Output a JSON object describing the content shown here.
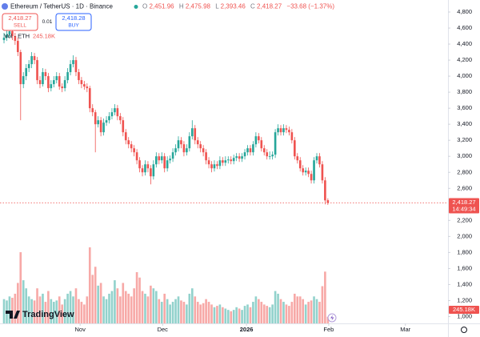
{
  "header": {
    "symbol": "Ethereum / TetherUS · 1D · Binance",
    "o_label": "O",
    "o": "2,451.96",
    "h_label": "H",
    "h": "2,475.98",
    "l_label": "L",
    "l": "2,393.46",
    "c_label": "C",
    "c": "2,418.27",
    "change": "−33.68 (−1.37%)"
  },
  "trade": {
    "sell_price": "2,418.27",
    "sell": "SELL",
    "spread": "0.01",
    "buy_price": "2,418.28",
    "buy": "BUY"
  },
  "volume_legend": {
    "label": "Vol · ETH",
    "value": "245.18K"
  },
  "price_tag": {
    "price": "2,418.27",
    "countdown": "14:49:34"
  },
  "volume_tag": "245.18K",
  "logo": "TradingView",
  "chart_data": {
    "type": "candlestick",
    "up_color": "#26a69a",
    "down_color": "#ef5350",
    "ylim": [
      915,
      4950
    ],
    "yticks": [
      {
        "value": 4800,
        "label": "4,800"
      },
      {
        "value": 4600,
        "label": "4,600"
      },
      {
        "value": 4400,
        "label": "4,400"
      },
      {
        "value": 4200,
        "label": "4,200"
      },
      {
        "value": 4000,
        "label": "4,000"
      },
      {
        "value": 3800,
        "label": "3,800"
      },
      {
        "value": 3600,
        "label": "3,600"
      },
      {
        "value": 3400,
        "label": "3,400"
      },
      {
        "value": 3200,
        "label": "3,200"
      },
      {
        "value": 3000,
        "label": "3,000"
      },
      {
        "value": 2800,
        "label": "2,800"
      },
      {
        "value": 2600,
        "label": "2,600"
      },
      {
        "value": 2200,
        "label": "2,200"
      },
      {
        "value": 2000,
        "label": "2,000"
      },
      {
        "value": 1800,
        "label": "1,800"
      },
      {
        "value": 1600,
        "label": "1,600"
      },
      {
        "value": 1400,
        "label": "1,400"
      },
      {
        "value": 1200,
        "label": "1,200"
      },
      {
        "value": 1000,
        "label": "1,000"
      }
    ],
    "xlim": [
      -1.45,
      160.4
    ],
    "xticks": [
      {
        "value": 27.5,
        "label": "Nov"
      },
      {
        "value": 57.3,
        "label": "Dec"
      },
      {
        "value": 87.6,
        "label": "2026"
      },
      {
        "value": 117.3,
        "label": "Feb"
      },
      {
        "value": 145,
        "label": "Mar"
      }
    ],
    "last_price": 2418.27,
    "candles": [
      [
        4450,
        4540,
        4410,
        4480
      ],
      [
        4480,
        4570,
        4440,
        4520
      ],
      [
        4520,
        4620,
        4480,
        4560
      ],
      [
        4560,
        4600,
        4450,
        4500
      ],
      [
        4500,
        4540,
        4390,
        4440
      ],
      [
        4440,
        4480,
        4250,
        4300
      ],
      [
        4300,
        4330,
        3450,
        3900
      ],
      [
        3900,
        4050,
        3850,
        4000
      ],
      [
        4000,
        4150,
        3950,
        4100
      ],
      [
        4100,
        4200,
        4050,
        4150
      ],
      [
        4150,
        4300,
        4100,
        4250
      ],
      [
        4250,
        4290,
        4150,
        4200
      ],
      [
        4200,
        4240,
        3900,
        3950
      ],
      [
        3950,
        4000,
        3850,
        3900
      ],
      [
        3900,
        4100,
        3870,
        4050
      ],
      [
        4050,
        4090,
        3950,
        4000
      ],
      [
        4000,
        4040,
        3800,
        3850
      ],
      [
        3850,
        3950,
        3810,
        3900
      ],
      [
        3900,
        4000,
        3860,
        3950
      ],
      [
        3950,
        4050,
        3910,
        4000
      ],
      [
        4000,
        4040,
        3830,
        3870
      ],
      [
        3870,
        3910,
        3800,
        3850
      ],
      [
        3850,
        4000,
        3810,
        3950
      ],
      [
        3950,
        4100,
        3910,
        4050
      ],
      [
        4050,
        4200,
        4010,
        4150
      ],
      [
        4150,
        4260,
        4110,
        4200
      ],
      [
        4200,
        4240,
        4000,
        4050
      ],
      [
        4050,
        4090,
        3900,
        3950
      ],
      [
        3950,
        3990,
        3850,
        3900
      ],
      [
        3900,
        3940,
        3830,
        3870
      ],
      [
        3870,
        3910,
        3800,
        3850
      ],
      [
        3850,
        3880,
        3550,
        3600
      ],
      [
        3600,
        3650,
        3500,
        3550
      ],
      [
        3550,
        3580,
        3050,
        3400
      ],
      [
        3400,
        3500,
        3360,
        3450
      ],
      [
        3450,
        3490,
        3250,
        3300
      ],
      [
        3300,
        3470,
        3260,
        3420
      ],
      [
        3420,
        3500,
        3380,
        3450
      ],
      [
        3450,
        3550,
        3410,
        3500
      ],
      [
        3500,
        3600,
        3460,
        3550
      ],
      [
        3550,
        3650,
        3510,
        3600
      ],
      [
        3600,
        3640,
        3450,
        3500
      ],
      [
        3500,
        3540,
        3400,
        3450
      ],
      [
        3450,
        3490,
        3250,
        3300
      ],
      [
        3300,
        3340,
        3150,
        3200
      ],
      [
        3200,
        3240,
        3100,
        3150
      ],
      [
        3150,
        3190,
        3050,
        3100
      ],
      [
        3100,
        3140,
        3000,
        3050
      ],
      [
        3050,
        3090,
        2900,
        2950
      ],
      [
        2950,
        2990,
        2800,
        2850
      ],
      [
        2850,
        2890,
        2750,
        2800
      ],
      [
        2800,
        2950,
        2760,
        2900
      ],
      [
        2900,
        2940,
        2800,
        2850
      ],
      [
        2850,
        2890,
        2650,
        2750
      ],
      [
        2750,
        2950,
        2710,
        2900
      ],
      [
        2900,
        3050,
        2860,
        3000
      ],
      [
        3000,
        3040,
        2900,
        2950
      ],
      [
        2950,
        3050,
        2910,
        3000
      ],
      [
        3000,
        3040,
        2800,
        2850
      ],
      [
        2850,
        3000,
        2810,
        2950
      ],
      [
        2950,
        3010,
        2910,
        2970
      ],
      [
        2970,
        3100,
        2930,
        3050
      ],
      [
        3050,
        3150,
        3010,
        3100
      ],
      [
        3100,
        3250,
        3060,
        3200
      ],
      [
        3200,
        3240,
        3100,
        3150
      ],
      [
        3150,
        3190,
        3000,
        3050
      ],
      [
        3050,
        3150,
        3010,
        3100
      ],
      [
        3100,
        3300,
        3060,
        3250
      ],
      [
        3250,
        3450,
        3210,
        3350
      ],
      [
        3350,
        3390,
        3150,
        3200
      ],
      [
        3200,
        3240,
        3100,
        3150
      ],
      [
        3150,
        3190,
        3050,
        3100
      ],
      [
        3100,
        3140,
        3000,
        3050
      ],
      [
        3050,
        3090,
        2900,
        2950
      ],
      [
        2950,
        2990,
        2850,
        2900
      ],
      [
        2900,
        2940,
        2800,
        2850
      ],
      [
        2850,
        2950,
        2810,
        2900
      ],
      [
        2900,
        2940,
        2840,
        2880
      ],
      [
        2880,
        3000,
        2840,
        2950
      ],
      [
        2950,
        2990,
        2880,
        2920
      ],
      [
        2920,
        3000,
        2880,
        2950
      ],
      [
        2950,
        3000,
        2910,
        2960
      ],
      [
        2960,
        3000,
        2900,
        2940
      ],
      [
        2940,
        3020,
        2900,
        2980
      ],
      [
        2980,
        3040,
        2940,
        3000
      ],
      [
        3000,
        3040,
        2930,
        2970
      ],
      [
        2970,
        3040,
        2930,
        3000
      ],
      [
        3000,
        3090,
        2960,
        3050
      ],
      [
        3050,
        3140,
        3010,
        3100
      ],
      [
        3100,
        3140,
        3010,
        3050
      ],
      [
        3050,
        3190,
        3010,
        3150
      ],
      [
        3150,
        3300,
        3110,
        3250
      ],
      [
        3250,
        3290,
        3160,
        3200
      ],
      [
        3200,
        3240,
        3060,
        3100
      ],
      [
        3100,
        3140,
        3010,
        3050
      ],
      [
        3050,
        3090,
        2960,
        3000
      ],
      [
        3000,
        3060,
        2960,
        3000
      ],
      [
        3000,
        3060,
        2960,
        3020
      ],
      [
        3020,
        3340,
        2980,
        3300
      ],
      [
        3300,
        3400,
        3260,
        3350
      ],
      [
        3350,
        3390,
        3260,
        3300
      ],
      [
        3300,
        3400,
        3260,
        3350
      ],
      [
        3350,
        3390,
        3290,
        3330
      ],
      [
        3330,
        3370,
        3260,
        3300
      ],
      [
        3300,
        3340,
        3160,
        3200
      ],
      [
        3200,
        3240,
        2960,
        3000
      ],
      [
        3000,
        3040,
        2910,
        2950
      ],
      [
        2950,
        2990,
        2810,
        2850
      ],
      [
        2850,
        2890,
        2760,
        2800
      ],
      [
        2800,
        2860,
        2760,
        2820
      ],
      [
        2820,
        2860,
        2740,
        2780
      ],
      [
        2780,
        2820,
        2660,
        2700
      ],
      [
        2700,
        2990,
        2660,
        2950
      ],
      [
        2950,
        3040,
        2910,
        3000
      ],
      [
        3000,
        3040,
        2860,
        2900
      ],
      [
        2900,
        2940,
        2660,
        2700
      ],
      [
        2700,
        2740,
        2400,
        2450
      ],
      [
        2451.96,
        2475.98,
        2393.46,
        2418.27
      ]
    ],
    "volume": [
      900,
      850,
      1000,
      950,
      1100,
      1500,
      2640,
      1600,
      1300,
      1000,
      900,
      850,
      1300,
      1000,
      1100,
      800,
      1200,
      900,
      800,
      850,
      1000,
      700,
      900,
      1100,
      1200,
      1000,
      1300,
      900,
      800,
      700,
      1000,
      2820,
      1800,
      2100,
      1400,
      1500,
      1000,
      900,
      1100,
      1200,
      1600,
      1300,
      1000,
      1500,
      1200,
      1100,
      1000,
      1300,
      1900,
      1700,
      1200,
      1100,
      1000,
      1400,
      1300,
      1200,
      900,
      800,
      1100,
      900,
      700,
      800,
      900,
      1000,
      850,
      800,
      700,
      1100,
      1300,
      1000,
      800,
      700,
      750,
      900,
      800,
      700,
      600,
      650,
      700,
      600,
      550,
      500,
      450,
      500,
      600,
      550,
      500,
      650,
      700,
      600,
      800,
      1000,
      900,
      800,
      700,
      650,
      600,
      700,
      1200,
      1100,
      900,
      800,
      700,
      650,
      800,
      1100,
      1000,
      1000,
      900,
      700,
      800,
      850,
      1000,
      900,
      800,
      1380,
      1920,
      245.18
    ]
  }
}
